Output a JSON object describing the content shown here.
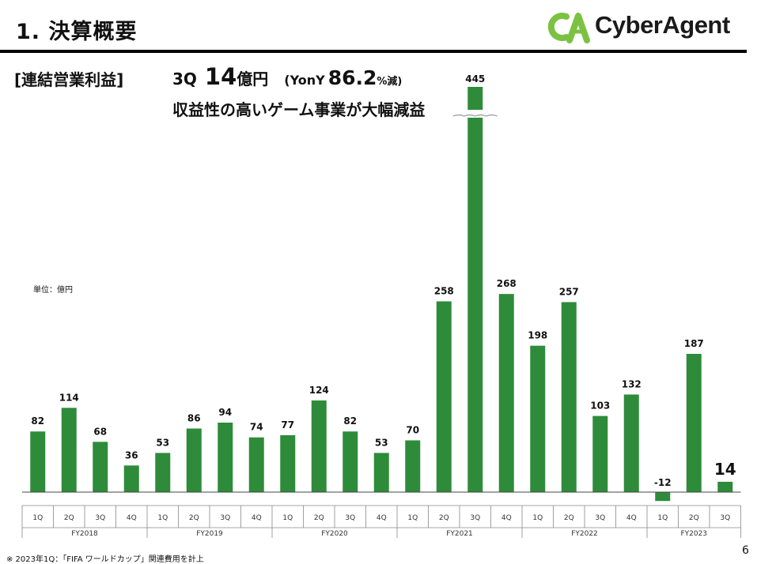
{
  "header": {
    "title": "1.  決算概要",
    "logo_text": "CyberAgent",
    "logo_mark": "CA"
  },
  "summary": {
    "section_label": "[連結営業利益]",
    "quarter": "3Q",
    "value": "14",
    "unit": "億円",
    "yoy_prefix": "(YonY",
    "yoy_value": "86.2",
    "yoy_suffix": "%減)",
    "subtitle": "収益性の高いゲーム事業が大幅減益"
  },
  "unit_label": "単位：億円",
  "footnote": "※ 2023年1Q：「FIFA ワールドカップ」関連費用を計上",
  "page_number": "6",
  "colors": {
    "bar": "#2e8b3a",
    "logo_green": "#7cc242",
    "rule": "#000000"
  },
  "chart_data": {
    "type": "bar",
    "groups": [
      {
        "name": "FY2018",
        "quarters": [
          "1Q",
          "2Q",
          "3Q",
          "4Q"
        ],
        "values": [
          82,
          114,
          68,
          36
        ]
      },
      {
        "name": "FY2019",
        "quarters": [
          "1Q",
          "2Q",
          "3Q",
          "4Q"
        ],
        "values": [
          53,
          86,
          94,
          74
        ]
      },
      {
        "name": "FY2020",
        "quarters": [
          "1Q",
          "2Q",
          "3Q",
          "4Q"
        ],
        "values": [
          77,
          124,
          82,
          53
        ]
      },
      {
        "name": "FY2021",
        "quarters": [
          "1Q",
          "2Q",
          "3Q",
          "4Q"
        ],
        "values": [
          70,
          258,
          445,
          268
        ]
      },
      {
        "name": "FY2022",
        "quarters": [
          "1Q",
          "2Q",
          "3Q",
          "4Q"
        ],
        "values": [
          198,
          257,
          103,
          132
        ]
      },
      {
        "name": "FY2023",
        "quarters": [
          "1Q",
          "2Q",
          "3Q"
        ],
        "values": [
          -12,
          187,
          14
        ]
      }
    ],
    "broken_axis_bar": {
      "group": "FY2021",
      "quarter": "3Q"
    },
    "highlight_bar": {
      "group": "FY2023",
      "quarter": "3Q"
    },
    "grid": false,
    "legend": "none"
  }
}
